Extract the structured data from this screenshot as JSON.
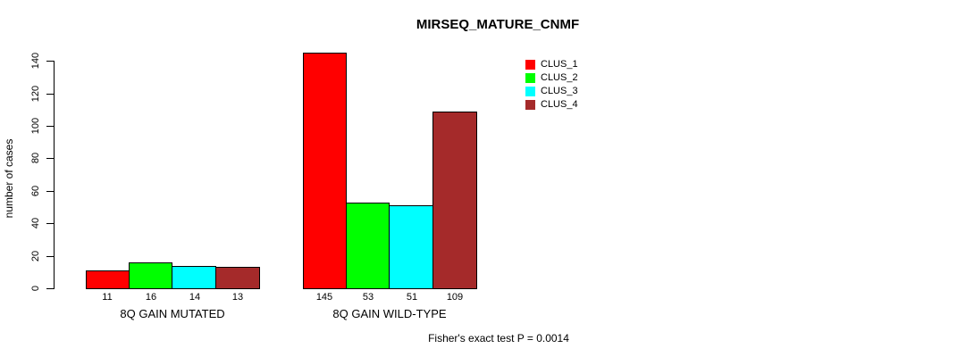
{
  "chart_data": {
    "type": "bar",
    "title": "MIRSEQ_MATURE_CNMF",
    "ylabel": "number of cases",
    "xlabel": "",
    "footnote": "Fisher's exact test P = 0.0014",
    "categories": [
      "8Q GAIN MUTATED",
      "8Q GAIN WILD-TYPE"
    ],
    "groups": [
      {
        "label": "8Q GAIN MUTATED",
        "values": [
          11,
          16,
          14,
          13
        ]
      },
      {
        "label": "8Q GAIN WILD-TYPE",
        "values": [
          145,
          53,
          51,
          109
        ]
      }
    ],
    "series": [
      {
        "name": "CLUS_1",
        "color": "#FF0000"
      },
      {
        "name": "CLUS_2",
        "color": "#00FF00"
      },
      {
        "name": "CLUS_3",
        "color": "#00FFFF"
      },
      {
        "name": "CLUS_4",
        "color": "#A52A2A"
      }
    ],
    "yticks": [
      0,
      20,
      40,
      60,
      80,
      100,
      120,
      140
    ],
    "ylim": [
      0,
      145
    ],
    "bar_border_color": "#000000",
    "background_color": "#FFFFFF",
    "legend_position": "top-right",
    "grid": false
  }
}
